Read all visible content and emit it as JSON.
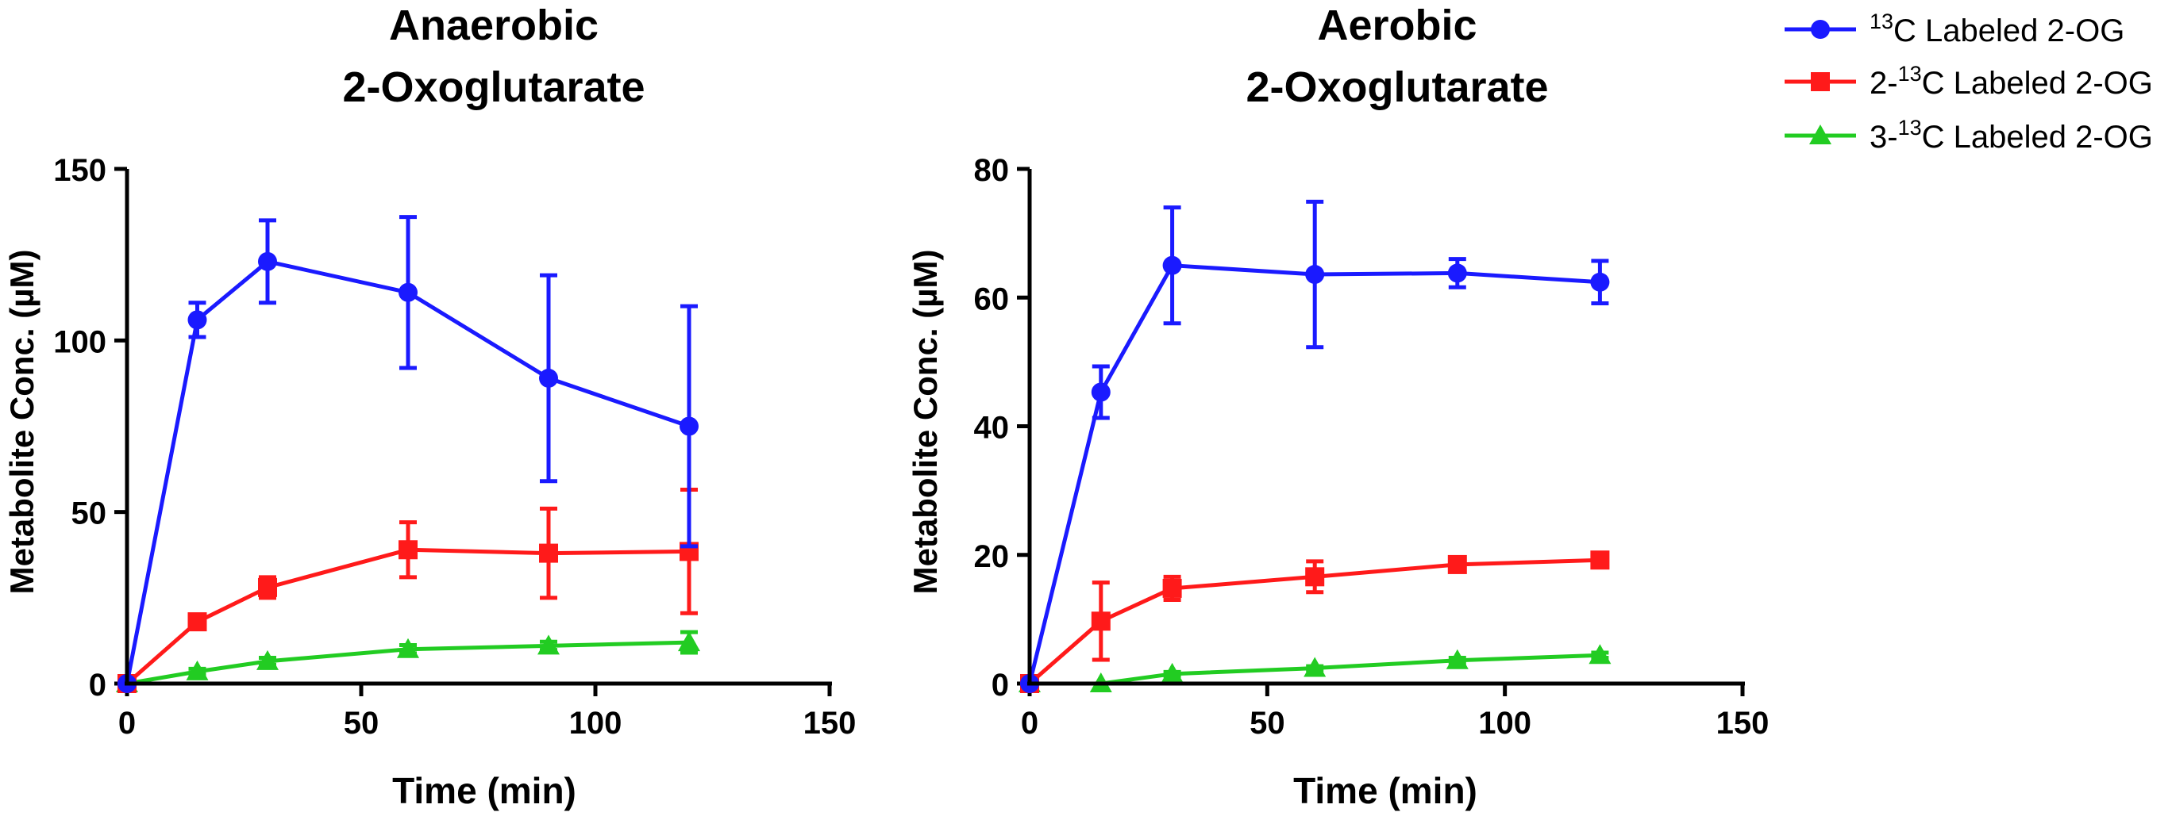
{
  "legend": {
    "entries": [
      {
        "series_ref": "s1",
        "sup": "13",
        "prefix": "",
        "suffix": "C Labeled 2-OG",
        "color": "#1a1aff",
        "marker": "circle"
      },
      {
        "series_ref": "s2",
        "sup": "13",
        "prefix": "2-",
        "suffix": "C Labeled 2-OG",
        "color": "#ff1a1a",
        "marker": "square"
      },
      {
        "series_ref": "s3",
        "sup": "13",
        "prefix": "3-",
        "suffix": "C Labeled 2-OG",
        "color": "#22cc22",
        "marker": "triangle"
      }
    ]
  },
  "chart_data": [
    {
      "type": "line",
      "title": "Anaerobic",
      "subtitle": "2-Oxoglutarate",
      "xlabel": "Time (min)",
      "ylabel": "Metabolite Conc. (µM)",
      "xlim": [
        0,
        150
      ],
      "ylim": [
        0,
        150
      ],
      "xticks": [
        0,
        50,
        100,
        150
      ],
      "yticks": [
        0,
        50,
        100,
        150
      ],
      "grid": false,
      "series": [
        {
          "id": "s1",
          "name": "13C Labeled 2-OG",
          "color": "#1a1aff",
          "marker": "circle",
          "x": [
            0,
            15,
            30,
            60,
            90,
            120
          ],
          "values": [
            0,
            106,
            123,
            114,
            89,
            75
          ],
          "errors": [
            0,
            5,
            12,
            22,
            30,
            35
          ]
        },
        {
          "id": "s2",
          "name": "2-13C Labeled 2-OG",
          "color": "#ff1a1a",
          "marker": "square",
          "x": [
            0,
            15,
            30,
            60,
            90,
            120
          ],
          "values": [
            0,
            18,
            28,
            39,
            38,
            38.5
          ],
          "errors": [
            0,
            1.5,
            3,
            8,
            13,
            18
          ]
        },
        {
          "id": "s3",
          "name": "3-13C Labeled 2-OG",
          "color": "#22cc22",
          "marker": "triangle",
          "x": [
            0,
            15,
            30,
            60,
            90,
            120
          ],
          "values": [
            0,
            3.5,
            6.5,
            10,
            11,
            12
          ],
          "errors": [
            0,
            0.8,
            1,
            1.2,
            1.2,
            3
          ]
        }
      ]
    },
    {
      "type": "line",
      "title": "Aerobic",
      "subtitle": "2-Oxoglutarate",
      "xlabel": "Time (min)",
      "ylabel": "Metabolite Conc. (µM)",
      "xlim": [
        0,
        150
      ],
      "ylim": [
        0,
        80
      ],
      "xticks": [
        0,
        50,
        100,
        150
      ],
      "yticks": [
        0,
        20,
        40,
        60,
        80
      ],
      "grid": false,
      "series": [
        {
          "id": "s1",
          "name": "13C Labeled 2-OG",
          "color": "#1a1aff",
          "marker": "circle",
          "x": [
            0,
            15,
            30,
            60,
            90,
            120
          ],
          "values": [
            0,
            45.3,
            65,
            63.6,
            63.8,
            62.4
          ],
          "errors": [
            0,
            4,
            9,
            11.3,
            2.2,
            3.3
          ]
        },
        {
          "id": "s2",
          "name": "2-13C Labeled 2-OG",
          "color": "#ff1a1a",
          "marker": "square",
          "x": [
            0,
            15,
            30,
            60,
            90,
            120
          ],
          "values": [
            0,
            9.7,
            14.8,
            16.6,
            18.5,
            19.2
          ],
          "errors": [
            0,
            6,
            1.8,
            2.4,
            1,
            0.8
          ]
        },
        {
          "id": "s3",
          "name": "3-13C Labeled 2-OG",
          "color": "#22cc22",
          "marker": "triangle",
          "x": [
            0,
            15,
            30,
            60,
            90,
            120
          ],
          "values": [
            0,
            0,
            1.5,
            2.4,
            3.6,
            4.4
          ],
          "errors": [
            0,
            0,
            0.3,
            0.3,
            0.4,
            0.4
          ]
        }
      ]
    }
  ]
}
